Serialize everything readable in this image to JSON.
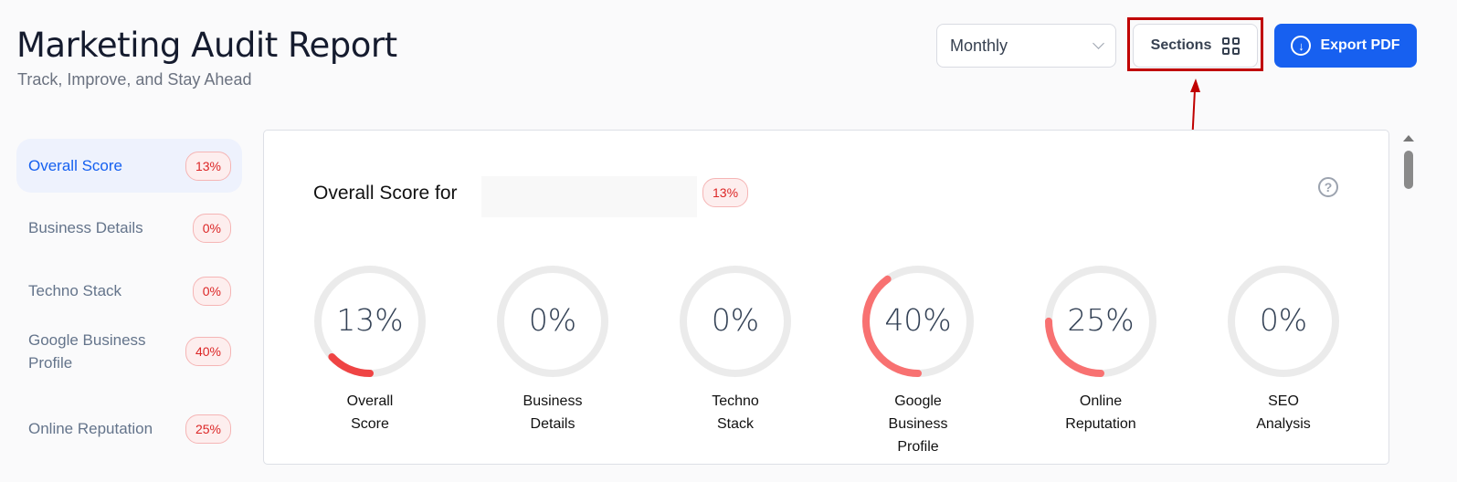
{
  "header": {
    "title": "Marketing Audit Report",
    "subtitle": "Track, Improve, and Stay Ahead"
  },
  "toolbar": {
    "period": "Monthly",
    "sections_label": "Sections",
    "export_label": "Export PDF"
  },
  "sidebar": {
    "items": [
      {
        "label": "Overall Score",
        "badge": "13%",
        "active": true
      },
      {
        "label": "Business Details",
        "badge": "0%"
      },
      {
        "label": "Techno Stack",
        "badge": "0%"
      },
      {
        "label": "Google Business\nProfile",
        "badge": "40%"
      },
      {
        "label": "Online Reputation",
        "badge": "25%"
      }
    ]
  },
  "card": {
    "title": "Overall Score for",
    "badge": "13%",
    "gauges": [
      {
        "value": 13,
        "text": "13%",
        "label": "Overall\nScore",
        "color": "#ef4444"
      },
      {
        "value": 0,
        "text": "0%",
        "label": "Business\nDetails",
        "color": "#f87171"
      },
      {
        "value": 0,
        "text": "0%",
        "label": "Techno\nStack",
        "color": "#f87171"
      },
      {
        "value": 40,
        "text": "40%",
        "label": "Google\nBusiness\nProfile",
        "color": "#f87171"
      },
      {
        "value": 25,
        "text": "25%",
        "label": "Online\nReputation",
        "color": "#f87171"
      },
      {
        "value": 0,
        "text": "0%",
        "label": "SEO\nAnalysis",
        "color": "#f87171"
      }
    ]
  },
  "colors": {
    "accent": "#1560f0",
    "annotation": "#c00000",
    "track": "#ebebeb"
  }
}
